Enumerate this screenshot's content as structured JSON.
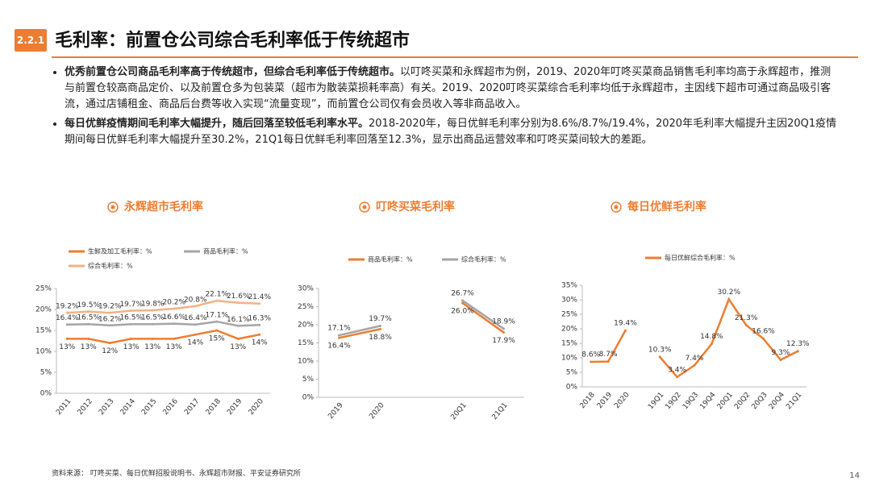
{
  "header": {
    "section": "2.2.1",
    "title": "毛利率：前置仓公司综合毛利率低于传统超市"
  },
  "bullets": [
    {
      "bold": "优秀前置仓公司商品毛利率高于传统超市，但综合毛利率低于传统超市。",
      "text": "以叮咚买菜和永辉超市为例，2019、2020年叮咚买菜商品销售毛利率均高于永辉超市，推测与前置仓较高商品定价、以及前置仓多为包装菜（超市为散装菜损耗率高）有关。2019、2020叮咚买菜综合毛利率均低于永辉超市，主因线下超市可通过商品吸引客流，通过店铺租金、商品后台费等收入实现“流量变现”，而前置仓公司仅有会员收入等非商品收入。"
    },
    {
      "bold": "每日优鲜疫情期间毛利率大幅提升，随后回落至较低毛利率水平。",
      "text": "2018-2020年，每日优鲜毛利率分别为8.6%/8.7%/19.4%，2020年毛利率大幅提升主因20Q1疫情期间每日优鲜毛利率大幅提升至30.2%，21Q1每日优鲜毛利率回落至12.3%，显示出商品运营效率和叮咚买菜间较大的差距。"
    }
  ],
  "chart_data": [
    {
      "type": "line",
      "title": "永辉超市毛利率",
      "categories": [
        "2011",
        "2012",
        "2013",
        "2014",
        "2015",
        "2016",
        "2017",
        "2018",
        "2019",
        "2020"
      ],
      "series": [
        {
          "name": "生鲜及加工毛利率：%",
          "color": "#ED7D31",
          "values": [
            13,
            13,
            12,
            13,
            13,
            13,
            14,
            15,
            13,
            14
          ],
          "value_labels": [
            "13%",
            "13%",
            "12%",
            "13%",
            "13%",
            "13%",
            "14%",
            "15%",
            "13%",
            "14%"
          ]
        },
        {
          "name": "商品毛利率：%",
          "color": "#A5A5A5",
          "values": [
            16.4,
            16.5,
            16.2,
            16.5,
            16.5,
            16.6,
            16.4,
            17.1,
            16.1,
            16.3
          ],
          "value_labels": [
            "16.4%",
            "16.5%",
            "16.2%",
            "16.5%",
            "16.5%",
            "16.6%",
            "16.4%",
            "17.1%",
            "16.1%",
            "16.3%"
          ]
        },
        {
          "name": "综合毛利率：%",
          "color": "#F4B183",
          "values": [
            19.2,
            19.5,
            19.2,
            19.7,
            19.8,
            20.2,
            20.8,
            22.1,
            21.6,
            21.4
          ],
          "value_labels": [
            "19.2%",
            "19.5%",
            "19.2%",
            "19.7%",
            "19.8%",
            "20.2%",
            "20.8%",
            "22.1%",
            "21.6%",
            "21.4%"
          ]
        }
      ],
      "ylim": [
        0,
        25
      ],
      "yticks": [
        {
          "value": 0,
          "label": "0%"
        },
        {
          "value": 5,
          "label": "5%"
        },
        {
          "value": 10,
          "label": "10%"
        },
        {
          "value": 15,
          "label": "15%"
        },
        {
          "value": 20,
          "label": "20%"
        },
        {
          "value": 25,
          "label": "25%"
        }
      ]
    },
    {
      "type": "line",
      "title": "叮咚买菜毛利率",
      "categories": [
        "2019",
        "2020",
        null,
        "20Q1",
        "21Q1"
      ],
      "series": [
        {
          "name": "商品毛利率：%",
          "color": "#ED7D31",
          "values": [
            16.4,
            18.8,
            null,
            26.0,
            17.9
          ],
          "value_labels": [
            "16.4%",
            "18.8%",
            null,
            "26.0%",
            "17.9%"
          ]
        },
        {
          "name": "综合毛利率：%",
          "color": "#A5A5A5",
          "values": [
            17.1,
            19.7,
            null,
            26.7,
            18.9
          ],
          "value_labels": [
            "17.1%",
            "19.7%",
            null,
            "26.7%",
            "18.9%"
          ]
        }
      ],
      "ylim": [
        0,
        30
      ],
      "yticks": [
        {
          "value": 0,
          "label": "0%"
        },
        {
          "value": 5,
          "label": "5%"
        },
        {
          "value": 10,
          "label": "10%"
        },
        {
          "value": 15,
          "label": "15%"
        },
        {
          "value": 20,
          "label": "20%"
        },
        {
          "value": 25,
          "label": "25%"
        },
        {
          "value": 30,
          "label": "30%"
        }
      ]
    },
    {
      "type": "line",
      "title": "每日优鲜毛利率",
      "categories": [
        "2018",
        "2019",
        "2020",
        null,
        "19Q1",
        "19Q2",
        "19Q3",
        "19Q4",
        "20Q1",
        "20Q2",
        "20Q3",
        "20Q4",
        "21Q1"
      ],
      "series": [
        {
          "name": "每日优鲜综合毛利率：%",
          "color": "#ED7D31",
          "values": [
            8.6,
            8.7,
            19.4,
            null,
            10.3,
            3.4,
            7.4,
            14.8,
            30.2,
            21.3,
            16.6,
            9.3,
            12.3
          ],
          "value_labels": [
            "8.6%",
            "8.7%",
            "19.4%",
            null,
            "10.3%",
            "3.4%",
            "7.4%",
            "14.8%",
            "30.2%",
            "21.3%",
            "16.6%",
            "9.3%",
            "12.3%"
          ]
        }
      ],
      "ylim": [
        0,
        35
      ],
      "yticks": [
        {
          "value": 0,
          "label": "0%"
        },
        {
          "value": 5,
          "label": "5%"
        },
        {
          "value": 10,
          "label": "10%"
        },
        {
          "value": 15,
          "label": "15%"
        },
        {
          "value": 20,
          "label": "20%"
        },
        {
          "value": 25,
          "label": "25%"
        },
        {
          "value": 30,
          "label": "30%"
        },
        {
          "value": 35,
          "label": "35%"
        }
      ]
    }
  ],
  "footer": {
    "source": "资料来源：  叮咚买菜、每日优鲜招股说明书、永辉超市财报、平安证券研究所",
    "page": "14"
  }
}
